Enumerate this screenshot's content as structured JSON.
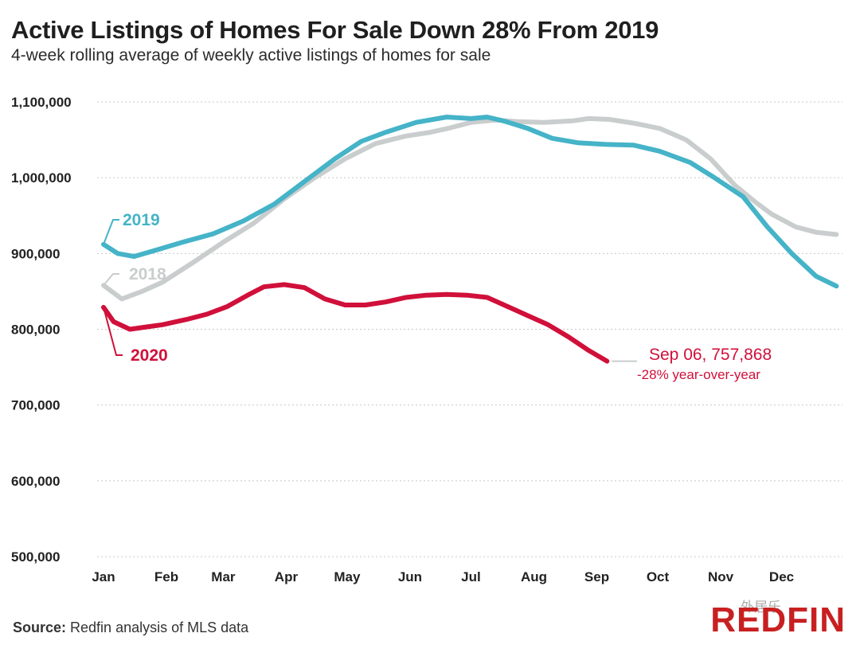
{
  "header": {
    "title": "Active Listings of Homes For Sale Down 28% From 2019",
    "subtitle": "4-week rolling average of weekly active listings of homes for sale"
  },
  "footer": {
    "source_label": "Source:",
    "source_text": " Redfin analysis of MLS data",
    "logo": "REDFIN",
    "watermark": "外居乐"
  },
  "colors": {
    "2019": "#45b3c8",
    "2018": "#c9cdcd",
    "2020": "#d0103a",
    "grid": "#c8c8c8"
  },
  "chart_data": {
    "type": "line",
    "ylim": [
      500000,
      1100000
    ],
    "yticks": [
      1100000,
      1000000,
      900000,
      800000,
      700000,
      600000,
      500000
    ],
    "ytick_labels": [
      "1,100,000",
      "1,000,000",
      "900,000",
      "800,000",
      "700,000",
      "600,000",
      "500,000"
    ],
    "xticks": [
      "Jan",
      "Feb",
      "Mar",
      "Apr",
      "May",
      "Jun",
      "Jul",
      "Aug",
      "Sep",
      "Oct",
      "Nov",
      "Dec"
    ],
    "grid": "horizontal-dotted",
    "series": [
      {
        "name": "2018",
        "x": [
          1,
          10,
          20,
          30,
          45,
          60,
          75,
          90,
          105,
          120,
          135,
          150,
          162,
          172,
          182,
          194,
          205,
          218,
          232,
          240,
          250,
          262,
          275,
          288,
          300,
          312,
          322,
          330,
          342,
          352,
          362
        ],
        "y": [
          858000,
          840000,
          850000,
          862000,
          888000,
          915000,
          940000,
          972000,
          1000000,
          1025000,
          1045000,
          1055000,
          1060000,
          1066000,
          1073000,
          1076000,
          1074000,
          1073000,
          1075000,
          1078000,
          1077000,
          1072000,
          1065000,
          1050000,
          1025000,
          990000,
          968000,
          952000,
          935000,
          928000,
          925000
        ]
      },
      {
        "name": "2019",
        "x": [
          1,
          8,
          16,
          25,
          40,
          55,
          70,
          85,
          100,
          115,
          128,
          140,
          155,
          170,
          182,
          190,
          198,
          210,
          222,
          235,
          248,
          262,
          275,
          290,
          302,
          316,
          328,
          340,
          352,
          362
        ],
        "y": [
          912000,
          900000,
          896000,
          903000,
          915000,
          926000,
          943000,
          965000,
          995000,
          1025000,
          1048000,
          1060000,
          1073000,
          1080000,
          1078000,
          1080000,
          1075000,
          1065000,
          1052000,
          1046000,
          1044000,
          1043000,
          1035000,
          1020000,
          1000000,
          975000,
          935000,
          900000,
          870000,
          857000
        ]
      },
      {
        "name": "2020",
        "x": [
          1,
          6,
          14,
          22,
          30,
          42,
          52,
          62,
          72,
          80,
          90,
          100,
          110,
          120,
          130,
          140,
          150,
          160,
          170,
          180,
          190,
          200,
          210,
          220,
          230,
          240,
          249
        ],
        "y": [
          829000,
          810000,
          800000,
          803000,
          806000,
          813000,
          820000,
          830000,
          845000,
          856000,
          859000,
          855000,
          840000,
          832000,
          832000,
          836000,
          842000,
          845000,
          846000,
          845000,
          842000,
          830000,
          818000,
          806000,
          790000,
          772000,
          757868
        ]
      }
    ],
    "annotation": {
      "main": "Sep 06, 757,868",
      "sub": "-28% year-over-year"
    }
  }
}
